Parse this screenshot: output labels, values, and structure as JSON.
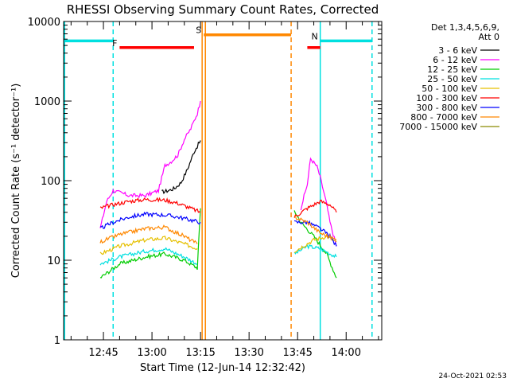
{
  "chart_data": {
    "type": "line",
    "title": "RHESSI Observing Summary Count Rates, Corrected",
    "xlabel": "Start Time (12-Jun-14 12:32:42)",
    "ylabel": "Corrected Count Rate (s⁻¹ detector⁻¹)",
    "y_scale": "log",
    "ylim": [
      1,
      10000
    ],
    "yticks": [
      {
        "value": 1,
        "label": "1"
      },
      {
        "value": 10,
        "label": "10"
      },
      {
        "value": 100,
        "label": "100"
      },
      {
        "value": 1000,
        "label": "1000"
      },
      {
        "value": 10000,
        "label": "10000"
      }
    ],
    "xlim": [
      "12:32:42",
      "14:11:00"
    ],
    "xticks": [
      "12:45",
      "13:00",
      "13:15",
      "13:30",
      "13:45",
      "14:00"
    ],
    "legend_header": [
      "Det 1,3,4,5,6,9,",
      "Att 0"
    ],
    "legend_placement": "right",
    "series": [
      {
        "name": "3 - 6 keV",
        "color": "#000000",
        "points": [
          [
            "13:03",
            72
          ],
          [
            "13:05",
            75
          ],
          [
            "13:07",
            80
          ],
          [
            "13:09",
            95
          ],
          [
            "13:11",
            140
          ],
          [
            "13:13",
            230
          ],
          [
            "13:15",
            320
          ]
        ]
      },
      {
        "name": "6 - 12 keV",
        "color": "#ff00ff",
        "points": [
          [
            "12:44",
            25
          ],
          [
            "12:46",
            55
          ],
          [
            "12:48",
            75
          ],
          [
            "12:53",
            65
          ],
          [
            "12:58",
            65
          ],
          [
            "13:02",
            75
          ],
          [
            "13:04",
            155
          ],
          [
            "13:06",
            175
          ],
          [
            "13:08",
            210
          ],
          [
            "13:10",
            330
          ],
          [
            "13:12",
            450
          ],
          [
            "13:14",
            700
          ],
          [
            "13:15",
            1000
          ],
          [
            "13:46",
            45
          ],
          [
            "13:48",
            90
          ],
          [
            "13:49",
            190
          ],
          [
            "13:51",
            150
          ],
          [
            "13:52",
            110
          ],
          [
            "13:54",
            50
          ],
          [
            "13:55",
            30
          ],
          [
            "13:57",
            15
          ]
        ]
      },
      {
        "name": "12 - 25 keV",
        "color": "#00cc00",
        "points": [
          [
            "12:44",
            6
          ],
          [
            "12:50",
            9
          ],
          [
            "12:58",
            11
          ],
          [
            "13:04",
            12
          ],
          [
            "13:10",
            10
          ],
          [
            "13:14",
            8
          ],
          [
            "13:15",
            45
          ],
          [
            "13:44",
            42
          ],
          [
            "13:46",
            30
          ],
          [
            "13:50",
            20
          ],
          [
            "13:54",
            12
          ],
          [
            "13:57",
            6
          ]
        ]
      },
      {
        "name": "25 - 50 keV",
        "color": "#00e0e0",
        "points": [
          [
            "12:44",
            9
          ],
          [
            "12:50",
            11
          ],
          [
            "12:58",
            13
          ],
          [
            "13:04",
            14
          ],
          [
            "13:10",
            11
          ],
          [
            "13:14",
            9
          ],
          [
            "13:44",
            12
          ],
          [
            "13:48",
            15
          ],
          [
            "13:52",
            14
          ],
          [
            "13:57",
            11
          ]
        ]
      },
      {
        "name": "50 - 100 keV",
        "color": "#e6c000",
        "points": [
          [
            "12:44",
            12
          ],
          [
            "12:50",
            15
          ],
          [
            "12:58",
            18
          ],
          [
            "13:04",
            19
          ],
          [
            "13:10",
            16
          ],
          [
            "13:14",
            14
          ],
          [
            "13:44",
            13
          ],
          [
            "13:50",
            18
          ],
          [
            "13:54",
            20
          ],
          [
            "13:57",
            17
          ]
        ]
      },
      {
        "name": "100 - 300 keV",
        "color": "#ff0000",
        "points": [
          [
            "12:44",
            45
          ],
          [
            "12:48",
            50
          ],
          [
            "12:53",
            55
          ],
          [
            "12:58",
            58
          ],
          [
            "13:04",
            57
          ],
          [
            "13:08",
            52
          ],
          [
            "13:12",
            45
          ],
          [
            "13:15",
            40
          ],
          [
            "13:44",
            35
          ],
          [
            "13:48",
            45
          ],
          [
            "13:52",
            55
          ],
          [
            "13:55",
            50
          ],
          [
            "13:57",
            40
          ]
        ]
      },
      {
        "name": "300 - 800 keV",
        "color": "#0000ff",
        "points": [
          [
            "12:44",
            25
          ],
          [
            "12:48",
            30
          ],
          [
            "12:53",
            35
          ],
          [
            "12:58",
            38
          ],
          [
            "13:04",
            37
          ],
          [
            "13:08",
            35
          ],
          [
            "13:12",
            32
          ],
          [
            "13:15",
            30
          ],
          [
            "13:44",
            30
          ],
          [
            "13:48",
            30
          ],
          [
            "13:52",
            25
          ],
          [
            "13:55",
            20
          ],
          [
            "13:57",
            15
          ]
        ]
      },
      {
        "name": "800 - 7000 keV",
        "color": "#ff8800",
        "points": [
          [
            "12:44",
            17
          ],
          [
            "12:50",
            21
          ],
          [
            "12:58",
            25
          ],
          [
            "13:04",
            26
          ],
          [
            "13:10",
            20
          ],
          [
            "13:14",
            16
          ],
          [
            "13:44",
            35
          ],
          [
            "13:48",
            30
          ],
          [
            "13:52",
            22
          ],
          [
            "13:57",
            18
          ]
        ]
      },
      {
        "name": "7000 - 15000 keV",
        "color": "#8a8a00",
        "points": []
      }
    ],
    "annotations": {
      "night_bars": [
        {
          "label": "",
          "color": "#00e0e0",
          "start": "12:32:42",
          "end": "12:48:00",
          "value": 5700
        },
        {
          "label": "N",
          "color": "#00e0e0",
          "start": "13:52:00",
          "end": "14:08:00",
          "value": 5700
        }
      ],
      "flare_bars": [
        {
          "label": "F",
          "color": "#ff0000",
          "start": "12:50:00",
          "end": "13:13:00",
          "value": 4700
        },
        {
          "label": "",
          "color": "#ff0000",
          "start": "13:48:00",
          "end": "13:52:00",
          "value": 4700
        }
      ],
      "saa_bars": [
        {
          "label": "S",
          "color": "#ff8800",
          "start": "13:16:00",
          "end": "13:43:00",
          "value": 6800
        }
      ],
      "vertical_lines": [
        {
          "time": "12:33:00",
          "color": "#00e0e0",
          "style": "solid"
        },
        {
          "time": "12:48:00",
          "color": "#00e0e0",
          "style": "dashed"
        },
        {
          "time": "13:15:30",
          "color": "#ff8800",
          "style": "solid"
        },
        {
          "time": "13:16:30",
          "color": "#ff8800",
          "style": "solid"
        },
        {
          "time": "13:43:00",
          "color": "#ff8800",
          "style": "dashed"
        },
        {
          "time": "13:52:00",
          "color": "#00e0e0",
          "style": "solid"
        },
        {
          "time": "14:08:00",
          "color": "#00e0e0",
          "style": "dashed"
        }
      ]
    }
  },
  "footer_timestamp": "24-Oct-2021 02:53"
}
